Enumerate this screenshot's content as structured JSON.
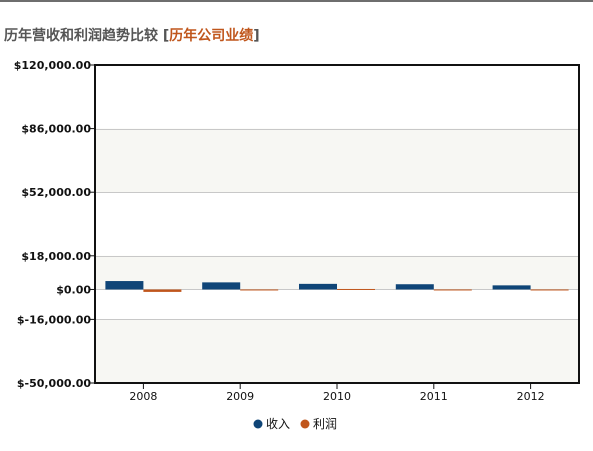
{
  "header": {
    "title": "历年营收和利润趋势比较",
    "bracket_open": "[",
    "link_label": "历年公司业绩",
    "bracket_close": "]"
  },
  "colors": {
    "revenue": "#0f4577",
    "profit": "#c0561c",
    "band": "#f7f7f3",
    "grid": "#c8c8c8",
    "frame": "#111111",
    "title_link": "#c0561c"
  },
  "chart_data": {
    "type": "bar",
    "title": "",
    "xlabel": "",
    "ylabel": "",
    "categories": [
      "2008",
      "2009",
      "2010",
      "2011",
      "2012"
    ],
    "series": [
      {
        "name": "收入",
        "values": [
          4500,
          3800,
          3000,
          2800,
          2200
        ]
      },
      {
        "name": "利润",
        "values": [
          -1300,
          -300,
          0,
          -300,
          -400
        ]
      }
    ],
    "ylim": [
      -50000,
      120000
    ],
    "yticks": [
      120000,
      86000,
      52000,
      18000,
      0,
      -16000,
      -50000
    ],
    "ytick_labels": [
      "$120,000.00",
      "$86,000.00",
      "$52,000.00",
      "$18,000.00",
      "$0.00",
      "$-16,000.00",
      "$-50,000.00"
    ],
    "grid": true,
    "legend_position": "bottom-center"
  }
}
